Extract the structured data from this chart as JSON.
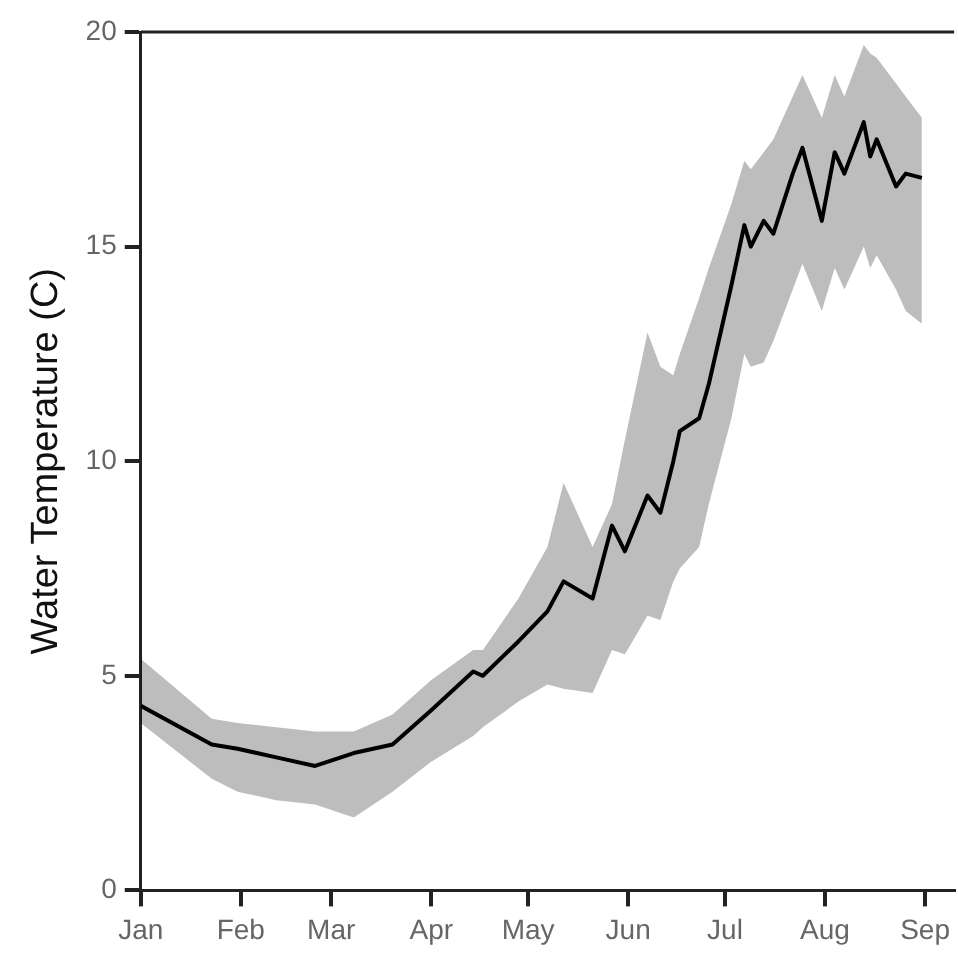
{
  "chart_data": {
    "type": "line",
    "ylabel": "Water Temperature (C)",
    "xlim": [
      "--01-01",
      "--09-10"
    ],
    "xticks": [
      {
        "value": "--01-01",
        "label": "Jan"
      },
      {
        "value": "--02-01",
        "label": "Feb"
      },
      {
        "value": "--03-01",
        "label": "Mar"
      },
      {
        "value": "--04-01",
        "label": "Apr"
      },
      {
        "value": "--05-01",
        "label": "May"
      },
      {
        "value": "--06-01",
        "label": "Jun"
      },
      {
        "value": "--07-01",
        "label": "Jul"
      },
      {
        "value": "--08-01",
        "label": "Aug"
      },
      {
        "value": "--09-01",
        "label": "Sep"
      }
    ],
    "ylim": [
      0,
      20
    ],
    "yticks": [
      0,
      5,
      10,
      15,
      20
    ],
    "grid": false,
    "legend": false,
    "marker": "none",
    "line_style": "solid",
    "series": [
      {
        "color": "#000000",
        "x": [
          "--01-01",
          "--01-23",
          "--01-31",
          "--02-12",
          "--02-24",
          "--03-08",
          "--03-20",
          "--04-01",
          "--04-14",
          "--04-17",
          "--04-28",
          "--05-07",
          "--05-12",
          "--05-21",
          "--05-27",
          "--05-31",
          "--06-07",
          "--06-11",
          "--06-15",
          "--06-17",
          "--06-23",
          "--06-26",
          "--07-03",
          "--07-07",
          "--07-09",
          "--07-13",
          "--07-16",
          "--07-22",
          "--07-25",
          "--07-31",
          "--08-04",
          "--08-07",
          "--08-13",
          "--08-15",
          "--08-17",
          "--08-23",
          "--08-26",
          "--08-31"
        ],
        "values": [
          4.3,
          3.4,
          3.3,
          3.1,
          2.9,
          3.2,
          3.4,
          4.2,
          5.1,
          5,
          5.8,
          6.5,
          7.2,
          6.8,
          8.5,
          7.9,
          9.2,
          8.8,
          10,
          10.7,
          11,
          11.8,
          14.1,
          15.5,
          15,
          15.6,
          15.3,
          16.7,
          17.3,
          15.6,
          17.2,
          16.7,
          17.9,
          17.1,
          17.5,
          16.4,
          16.7,
          16.6
        ],
        "lower": [
          3.9,
          2.6,
          2.3,
          2.1,
          2,
          1.7,
          2.3,
          3,
          3.6,
          3.8,
          4.4,
          4.8,
          4.7,
          4.6,
          5.6,
          5.5,
          6.4,
          6.3,
          7.2,
          7.5,
          8,
          9,
          11,
          12.5,
          12.2,
          12.3,
          12.8,
          14,
          14.6,
          13.5,
          14.5,
          14,
          15,
          14.5,
          14.8,
          14,
          13.5,
          13.2
        ],
        "upper": [
          5.4,
          4,
          3.9,
          3.8,
          3.7,
          3.7,
          4.1,
          4.9,
          5.6,
          5.6,
          6.8,
          8,
          9.5,
          8,
          9,
          10.5,
          13,
          12.2,
          12,
          12.5,
          13.8,
          14.5,
          16,
          17,
          16.8,
          17.2,
          17.5,
          18.5,
          19,
          18,
          19,
          18.5,
          19.7,
          19.5,
          19.4,
          18.8,
          18.5,
          18
        ]
      }
    ]
  }
}
